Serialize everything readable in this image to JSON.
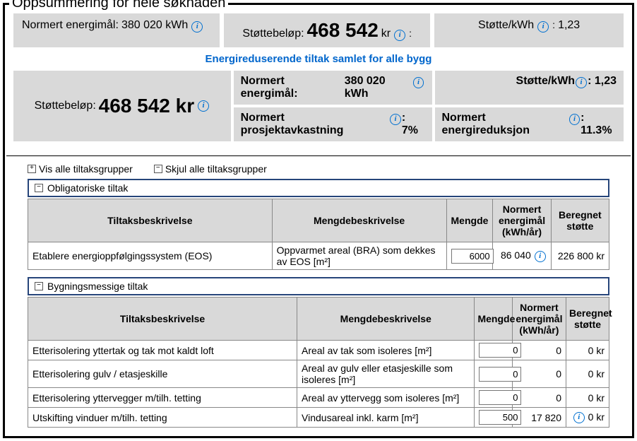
{
  "fieldset_title": "Oppsummering for hele søknaden",
  "top": {
    "energyGoal_label": "Normert energimål:",
    "energyGoal_value": "380 020 kWh",
    "support_label": "Støttebeløp:",
    "support_value": "468 542",
    "support_unit": "kr",
    "perKwh_label": "Støtte/kWh",
    "perKwh_value": "1,23"
  },
  "link_row": "Energireduserende tiltak samlet for alle bygg",
  "grid2": {
    "energyGoal_label": "Normert energimål:",
    "energyGoal_value": "380 020 kWh",
    "support_label": "Støttebeløp:",
    "support_value": "468 542 kr",
    "return_label": "Normert prosjektavkastning",
    "return_value": ": 7%",
    "perKwh_label": "Støtte/kWh",
    "perKwh_value": ": 1,23",
    "reduction_label": "Normert energireduksjon",
    "reduction_value": ": 11.3%"
  },
  "toggles": {
    "expand": "Vis alle tiltaksgrupper",
    "collapse": "Skjul alle tiltaksgrupper"
  },
  "group1": {
    "title": "Obligatoriske tiltak",
    "headers": {
      "c1": "Tiltaksbeskrivelse",
      "c2": "Mengdebeskrivelse",
      "c3": "Mengde",
      "c4": "Normert energimål (kWh/år)",
      "c5": "Beregnet støtte"
    },
    "row1": {
      "desc": "Etablere energioppfølgingssystem (EOS)",
      "unit": "Oppvarmet areal (BRA) som dekkes av EOS [m²]",
      "qty": "6000",
      "goal": "86 040",
      "support": "226 800 kr"
    }
  },
  "group2": {
    "title": "Bygningsmessige tiltak",
    "headers": {
      "c1": "Tiltaksbeskrivelse",
      "c2": "Mengdebeskrivelse",
      "c3": "Mengde",
      "c4": "Normert energimål (kWh/år)",
      "c5": "Beregnet støtte"
    },
    "rows": [
      {
        "desc": "Etterisolering yttertak og tak mot kaldt loft",
        "unit": "Areal av tak som isoleres [m²]",
        "qty": "0",
        "goal": "0",
        "support": "0 kr"
      },
      {
        "desc": "Etterisolering gulv / etasjeskille",
        "unit": "Areal av gulv eller etasjeskille som isoleres [m²]",
        "qty": "0",
        "goal": "0",
        "support": "0 kr"
      },
      {
        "desc": "Etterisolering yttervegger m/tilh. tetting",
        "unit": "Areal av yttervegg som isoleres [m²]",
        "qty": "0",
        "goal": "0",
        "support": "0 kr"
      },
      {
        "desc": "Utskifting vinduer m/tilh. tetting",
        "unit": "Vindusareal inkl. karm [m²]",
        "qty": "500",
        "goal": "17 820",
        "support": "0 kr",
        "info": true
      }
    ]
  },
  "styling": {
    "border_color": "#000000",
    "header_bg": "#d9d9d9",
    "group_border": "#26457a",
    "link_color": "#0066cc",
    "info_color": "#0070d0"
  }
}
